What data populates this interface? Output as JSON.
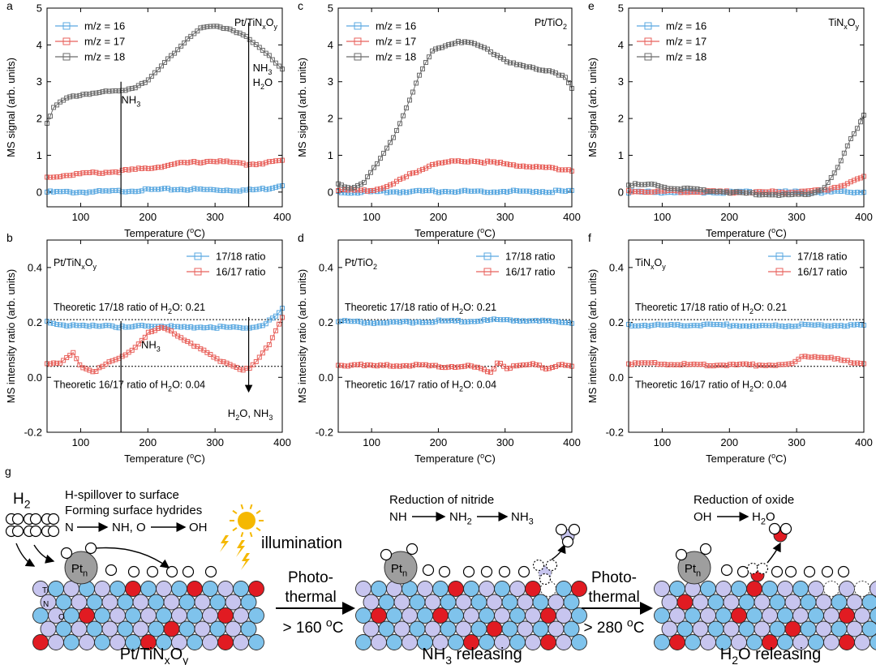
{
  "colors": {
    "m16": "#5aa8e0",
    "m17": "#e8625c",
    "m18": "#6b6b6b",
    "atom_blue": "#7fc3ec",
    "atom_lav": "#c7c5ef",
    "atom_red": "#e11b22",
    "pt": "#9e9e9e",
    "sun": "#f5b800"
  },
  "chart_data": [
    {
      "panel": "a",
      "type": "line",
      "inset": "Pt/TiN",
      "inset_sub": "x",
      "inset_mid": "O",
      "inset_sub2": "y",
      "xlabel": "Temperature (",
      "xlabel_sup": "o",
      "xlabel_end": "C)",
      "ylabel": "MS signal (arb. units)",
      "xlim": [
        50,
        400
      ],
      "ylim": [
        -0.4,
        5
      ],
      "xticks": [
        100,
        200,
        300,
        400
      ],
      "yticks": [
        0,
        1,
        2,
        3,
        4,
        5
      ],
      "legend": [
        "m/z = 16",
        "m/z = 17",
        "m/z = 18"
      ],
      "series": [
        {
          "name": "m/z = 16",
          "color_key": "m16",
          "x": [
            50,
            100,
            150,
            200,
            250,
            300,
            350,
            380,
            400
          ],
          "values": [
            0.0,
            0.0,
            0.02,
            0.06,
            0.08,
            0.06,
            0.05,
            0.1,
            0.2
          ]
        },
        {
          "name": "m/z = 17",
          "color_key": "m17",
          "x": [
            50,
            100,
            150,
            200,
            250,
            300,
            350,
            400
          ],
          "values": [
            0.4,
            0.5,
            0.55,
            0.65,
            0.78,
            0.85,
            0.75,
            0.85
          ]
        },
        {
          "name": "m/z = 18",
          "color_key": "m18",
          "x": [
            50,
            60,
            80,
            100,
            120,
            140,
            160,
            180,
            200,
            220,
            240,
            260,
            280,
            300,
            320,
            340,
            360,
            380,
            400
          ],
          "values": [
            1.9,
            2.3,
            2.55,
            2.65,
            2.7,
            2.72,
            2.75,
            2.85,
            3.05,
            3.4,
            3.8,
            4.2,
            4.45,
            4.5,
            4.45,
            4.3,
            4.0,
            3.7,
            3.35
          ]
        }
      ],
      "vlines": [
        {
          "x": 160,
          "y_from": -0.4,
          "y_to": 3.0,
          "label": "NH",
          "label_sub": "3",
          "label_x": 170,
          "label_y": 2.5
        }
      ],
      "vline2": {
        "x": 350,
        "y_from": -0.2,
        "y_to": 4.8,
        "label1": "NH",
        "label1_sub": "3",
        "label2": "H",
        "label2_sub": "2",
        "label2_end": "O"
      }
    },
    {
      "panel": "c",
      "type": "line",
      "inset": "Pt/TiO",
      "inset_sub": "2",
      "xlabel": "Temperature (",
      "xlabel_sup": "o",
      "xlabel_end": "C)",
      "ylabel": "MS signal (arb. units)",
      "xlim": [
        50,
        400
      ],
      "ylim": [
        -0.4,
        5
      ],
      "xticks": [
        100,
        200,
        300,
        400
      ],
      "yticks": [
        0,
        1,
        2,
        3,
        4,
        5
      ],
      "legend": [
        "m/z = 16",
        "m/z = 17",
        "m/z = 18"
      ],
      "series": [
        {
          "name": "m/z = 16",
          "color_key": "m16",
          "x": [
            50,
            100,
            200,
            300,
            400
          ],
          "values": [
            0.0,
            0.0,
            0.02,
            0.02,
            0.02
          ]
        },
        {
          "name": "m/z = 17",
          "color_key": "m17",
          "x": [
            50,
            100,
            130,
            160,
            190,
            220,
            250,
            280,
            310,
            340,
            370,
            400
          ],
          "values": [
            0.05,
            0.05,
            0.2,
            0.5,
            0.75,
            0.82,
            0.85,
            0.8,
            0.75,
            0.7,
            0.65,
            0.6
          ]
        },
        {
          "name": "m/z = 18",
          "color_key": "m18",
          "x": [
            50,
            70,
            90,
            110,
            130,
            150,
            170,
            190,
            210,
            230,
            250,
            270,
            290,
            310,
            330,
            350,
            370,
            390,
            400
          ],
          "values": [
            0.2,
            0.1,
            0.3,
            0.8,
            1.4,
            2.2,
            3.1,
            3.8,
            4.0,
            4.1,
            4.05,
            3.9,
            3.7,
            3.5,
            3.4,
            3.35,
            3.3,
            3.1,
            2.8
          ]
        }
      ]
    },
    {
      "panel": "e",
      "type": "line",
      "inset": "TiN",
      "inset_sub": "x",
      "inset_mid": "O",
      "inset_sub2": "y",
      "xlabel": "Temperature (",
      "xlabel_sup": "o",
      "xlabel_end": "C)",
      "ylabel": "MS signal (arb. units)",
      "xlim": [
        50,
        400
      ],
      "ylim": [
        -0.4,
        5
      ],
      "xticks": [
        100,
        200,
        300,
        400
      ],
      "yticks": [
        0,
        1,
        2,
        3,
        4,
        5
      ],
      "legend": [
        "m/z = 16",
        "m/z = 17",
        "m/z = 18"
      ],
      "series": [
        {
          "name": "m/z = 16",
          "color_key": "m16",
          "x": [
            50,
            200,
            400
          ],
          "values": [
            0.0,
            0.0,
            0.0
          ]
        },
        {
          "name": "m/z = 17",
          "color_key": "m17",
          "x": [
            50,
            100,
            200,
            300,
            340,
            370,
            400
          ],
          "values": [
            0.02,
            0.02,
            0.0,
            0.0,
            0.05,
            0.2,
            0.4
          ]
        },
        {
          "name": "m/z = 18",
          "color_key": "m18",
          "x": [
            50,
            80,
            120,
            160,
            200,
            240,
            280,
            320,
            340,
            360,
            380,
            400
          ],
          "values": [
            0.2,
            0.2,
            0.1,
            0.05,
            0.0,
            -0.05,
            -0.08,
            -0.05,
            0.1,
            0.6,
            1.4,
            2.1
          ]
        }
      ]
    },
    {
      "panel": "b",
      "type": "line",
      "inset": "Pt/TiN",
      "inset_sub": "x",
      "inset_mid": "O",
      "inset_sub2": "y",
      "xlabel": "Temperature (",
      "xlabel_sup": "o",
      "xlabel_end": "C)",
      "ylabel": "MS intensity ratio (arb. units)",
      "xlim": [
        50,
        400
      ],
      "ylim": [
        -0.2,
        0.5
      ],
      "xticks": [
        100,
        200,
        300,
        400
      ],
      "yticks": [
        -0.2,
        0.0,
        0.2,
        0.4
      ],
      "legend": [
        "17/18 ratio",
        "16/17 ratio"
      ],
      "hlines": [
        0.21,
        0.04
      ],
      "theo1": "Theoretic 17/18 ratio of H",
      "theo1_sub": "2",
      "theo1_end": "O: 0.21",
      "theo2": "Theoretic 16/17 ratio of H",
      "theo2_sub": "2",
      "theo2_end": "O: 0.04",
      "series": [
        {
          "name": "17/18 ratio",
          "color_key": "m16",
          "x": [
            50,
            80,
            110,
            140,
            170,
            200,
            230,
            260,
            290,
            320,
            350,
            370,
            390,
            400
          ],
          "values": [
            0.2,
            0.19,
            0.185,
            0.19,
            0.18,
            0.19,
            0.185,
            0.18,
            0.185,
            0.18,
            0.18,
            0.19,
            0.22,
            0.25
          ]
        },
        {
          "name": "16/17 ratio",
          "color_key": "m17",
          "x": [
            50,
            70,
            90,
            100,
            120,
            140,
            160,
            180,
            200,
            220,
            240,
            260,
            280,
            300,
            320,
            340,
            350,
            360,
            380,
            400
          ],
          "values": [
            0.05,
            0.05,
            0.09,
            0.04,
            0.02,
            0.05,
            0.07,
            0.11,
            0.16,
            0.18,
            0.16,
            0.13,
            0.1,
            0.07,
            0.05,
            0.03,
            0.03,
            0.05,
            0.12,
            0.22
          ]
        }
      ],
      "arrow_label1": "NH",
      "arrow_label1_sub": "3",
      "arrow_label2": "H",
      "arrow_label2_sub": "2",
      "arrow_label2_end": "O, NH",
      "arrow_label2_sub2": "3"
    },
    {
      "panel": "d",
      "type": "line",
      "inset": "Pt/TiO",
      "inset_sub": "2",
      "xlabel": "Temperature (",
      "xlabel_sup": "o",
      "xlabel_end": "C)",
      "ylabel": "MS intensity ratio (arb. units)",
      "xlim": [
        50,
        400
      ],
      "ylim": [
        -0.2,
        0.5
      ],
      "xticks": [
        100,
        200,
        300,
        400
      ],
      "yticks": [
        -0.2,
        0.0,
        0.2,
        0.4
      ],
      "legend": [
        "17/18 ratio",
        "16/17 ratio"
      ],
      "hlines": [
        0.21,
        0.04
      ],
      "theo1": "Theoretic 17/18 ratio of H",
      "theo1_sub": "2",
      "theo1_end": "O: 0.21",
      "theo2": "Theoretic 16/17 ratio of H",
      "theo2_sub": "2",
      "theo2_end": "O: 0.04",
      "series": [
        {
          "name": "17/18 ratio",
          "color_key": "m16",
          "x": [
            50,
            100,
            150,
            200,
            250,
            300,
            350,
            400
          ],
          "values": [
            0.205,
            0.2,
            0.2,
            0.205,
            0.205,
            0.21,
            0.205,
            0.2
          ]
        },
        {
          "name": "16/17 ratio",
          "color_key": "m17",
          "x": [
            50,
            80,
            100,
            150,
            200,
            250,
            280,
            290,
            300,
            350,
            360,
            380,
            400
          ],
          "values": [
            0.04,
            0.05,
            0.04,
            0.045,
            0.04,
            0.04,
            0.02,
            0.06,
            0.035,
            0.05,
            0.03,
            0.045,
            0.04
          ]
        }
      ]
    },
    {
      "panel": "f",
      "type": "line",
      "inset": "TiN",
      "inset_sub": "x",
      "inset_mid": "O",
      "inset_sub2": "y",
      "xlabel": "Temperature (",
      "xlabel_sup": "o",
      "xlabel_end": "C)",
      "ylabel": "MS intensity ratio (arb. units)",
      "xlim": [
        50,
        400
      ],
      "ylim": [
        -0.2,
        0.5
      ],
      "xticks": [
        100,
        200,
        300,
        400
      ],
      "yticks": [
        -0.2,
        0.0,
        0.2,
        0.4
      ],
      "legend": [
        "17/18 ratio",
        "16/17 ratio"
      ],
      "hlines": [
        0.21,
        0.04
      ],
      "theo1": "Theoretic 17/18 ratio of H",
      "theo1_sub": "2",
      "theo1_end": "O: 0.21",
      "theo2": "Theoretic 16/17 ratio of H",
      "theo2_sub": "2",
      "theo2_end": "O: 0.04",
      "series": [
        {
          "name": "17/18 ratio",
          "color_key": "m16",
          "x": [
            50,
            100,
            150,
            200,
            250,
            300,
            350,
            400
          ],
          "values": [
            0.19,
            0.19,
            0.19,
            0.19,
            0.185,
            0.19,
            0.19,
            0.19
          ]
        },
        {
          "name": "16/17 ratio",
          "color_key": "m17",
          "x": [
            50,
            100,
            150,
            200,
            250,
            290,
            300,
            310,
            330,
            350,
            370,
            400
          ],
          "values": [
            0.05,
            0.05,
            0.045,
            0.045,
            0.045,
            0.045,
            0.06,
            0.08,
            0.075,
            0.07,
            0.06,
            0.05
          ]
        }
      ]
    }
  ],
  "schematic": {
    "panel_label": "g",
    "h2": "H",
    "h2_sub": "2",
    "step1_line1": "H-spillover to surface",
    "step1_line2": "Forming surface hydrides",
    "step1_line3a": "N",
    "step1_line3b": "NH, O",
    "step1_line3c": "OH",
    "illumination": "illumination",
    "pt": "Pt",
    "pt_sub": "n",
    "ti": "Ti",
    "n": "N",
    "o": "O",
    "arrow1_l1": "Photo-",
    "arrow1_l2": "thermal",
    "arrow1_temp": "> 160 ",
    "arrow1_sup": "o",
    "arrow1_unit": "C",
    "arrow2_l1": "Photo-",
    "arrow2_l2": "thermal",
    "arrow2_temp": "> 280 ",
    "arrow2_sup": "o",
    "arrow2_unit": "C",
    "step2_title": "Reduction of nitride",
    "step2_a": "NH",
    "step2_b": "NH",
    "step2_b_sub": "2",
    "step2_c": "NH",
    "step2_c_sub": "3",
    "step3_title": "Reduction of oxide",
    "step3_a": "OH",
    "step3_b": "H",
    "step3_b_sub": "2",
    "step3_b_end": "O",
    "cap1": "Pt/TiN",
    "cap1_sub": "x",
    "cap1_mid": "O",
    "cap1_sub2": "y",
    "cap2": "NH",
    "cap2_sub": "3",
    "cap2_end": " releasing",
    "cap3": "H",
    "cap3_sub": "2",
    "cap3_end": "O releasing"
  }
}
